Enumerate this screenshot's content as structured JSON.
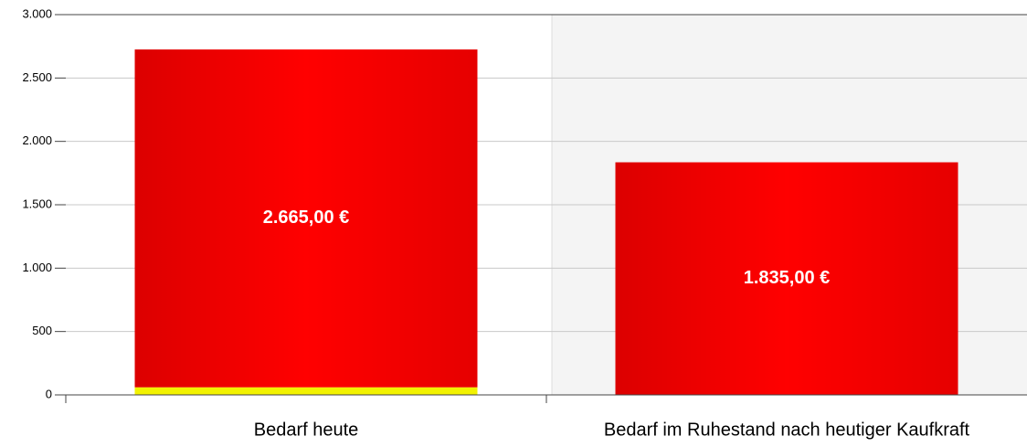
{
  "chart_data": {
    "type": "stacked_bar",
    "categories": [
      "Bedarf heute",
      "Bedarf im Ruhestand nach heutiger Kaufkraft"
    ],
    "series": [
      {
        "color": "#f2f200",
        "values": [
          60,
          0
        ]
      },
      {
        "color": "#e60000",
        "values": [
          2665,
          1835
        ],
        "value_labels": [
          "2.665,00 €",
          "1.835,00 €"
        ]
      }
    ],
    "ylim": [
      0,
      3000
    ],
    "yticks": [
      0,
      500,
      {
        "value": 1000,
        "label": "1.000"
      },
      {
        "value": 1500,
        "label": "1.500"
      },
      {
        "value": 2000,
        "label": "2.000"
      },
      {
        "value": 2500,
        "label": "2.500"
      },
      {
        "value": 3000,
        "label": "3.000"
      }
    ],
    "grid": true
  }
}
